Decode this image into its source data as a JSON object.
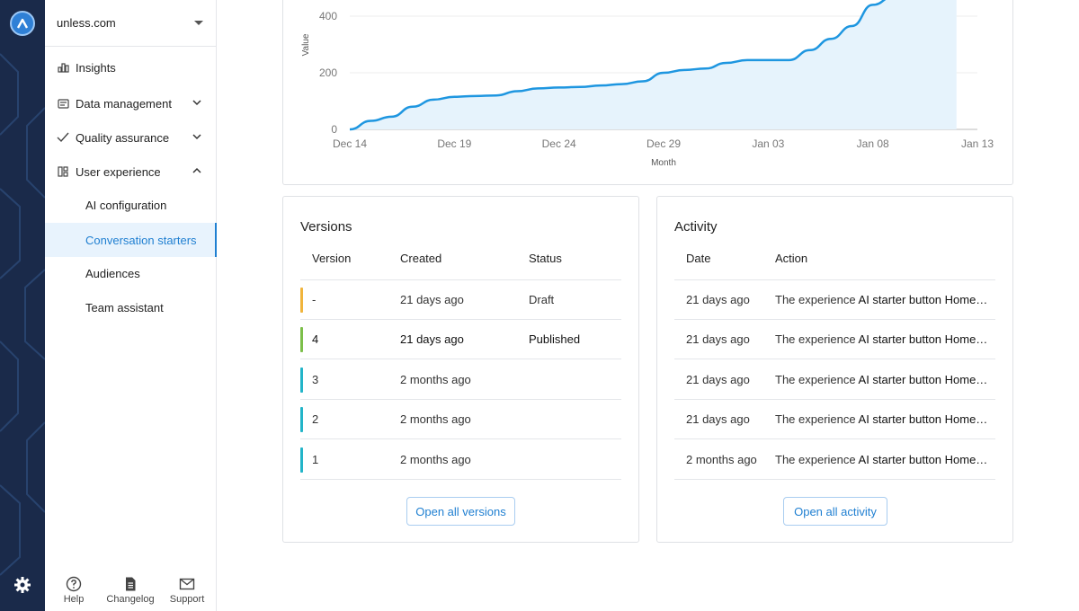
{
  "workspace": {
    "name": "unless.com"
  },
  "nav": {
    "insights": "Insights",
    "data_management": "Data management",
    "quality_assurance": "Quality assurance",
    "user_experience": "User experience",
    "sub": [
      "AI configuration",
      "Conversation starters",
      "Audiences",
      "Team assistant"
    ]
  },
  "footer": {
    "help": "Help",
    "changelog": "Changelog",
    "support": "Support"
  },
  "chart_data": {
    "type": "area",
    "xlabel": "Month",
    "ylabel": "Value",
    "x_ticks": [
      "Dec 14",
      "Dec 19",
      "Dec 24",
      "Dec 29",
      "Jan 03",
      "Jan 08",
      "Jan 13"
    ],
    "y_ticks": [
      0,
      200,
      400
    ],
    "x": [
      "Dec 14",
      "Dec 15",
      "Dec 16",
      "Dec 17",
      "Dec 18",
      "Dec 19",
      "Dec 20",
      "Dec 21",
      "Dec 22",
      "Dec 23",
      "Dec 24",
      "Dec 25",
      "Dec 26",
      "Dec 27",
      "Dec 28",
      "Dec 29",
      "Dec 30",
      "Dec 31",
      "Jan 01",
      "Jan 02",
      "Jan 03",
      "Jan 04",
      "Jan 05",
      "Jan 06",
      "Jan 07",
      "Jan 08",
      "Jan 09",
      "Jan 10",
      "Jan 11",
      "Jan 12"
    ],
    "values": [
      0,
      30,
      45,
      80,
      105,
      115,
      118,
      120,
      135,
      145,
      148,
      150,
      155,
      160,
      170,
      200,
      210,
      215,
      235,
      245,
      245,
      245,
      280,
      320,
      365,
      440,
      470,
      475,
      478,
      480
    ],
    "color": "#1e96e0",
    "fill": "#e6f3fc",
    "grid": true
  },
  "versions": {
    "title": "Versions",
    "columns": [
      "Version",
      "Created",
      "Status"
    ],
    "rows": [
      {
        "version": "-",
        "created": "21 days ago",
        "status": "Draft",
        "color": "#f0b43c"
      },
      {
        "version": "4",
        "created": "21 days ago",
        "status": "Published",
        "color": "#7cbf4a"
      },
      {
        "version": "3",
        "created": "2 months ago",
        "status": "",
        "color": "#22b4c8"
      },
      {
        "version": "2",
        "created": "2 months ago",
        "status": "",
        "color": "#22b4c8"
      },
      {
        "version": "1",
        "created": "2 months ago",
        "status": "",
        "color": "#22b4c8"
      }
    ],
    "button": "Open all versions"
  },
  "activity": {
    "title": "Activity",
    "columns": [
      "Date",
      "Action"
    ],
    "rows": [
      {
        "date": "21 days ago",
        "prefix": "The experience",
        "name": "AI starter button Home…"
      },
      {
        "date": "21 days ago",
        "prefix": "The experience",
        "name": "AI starter button Home…"
      },
      {
        "date": "21 days ago",
        "prefix": "The experience",
        "name": "AI starter button Home…"
      },
      {
        "date": "21 days ago",
        "prefix": "The experience",
        "name": "AI starter button Home…"
      },
      {
        "date": "2 months ago",
        "prefix": "The experience",
        "name": "AI starter button Home…"
      }
    ],
    "button": "Open all activity"
  },
  "colors": {
    "accent": "#1f7fd1",
    "rail": "#1a2a4a"
  }
}
